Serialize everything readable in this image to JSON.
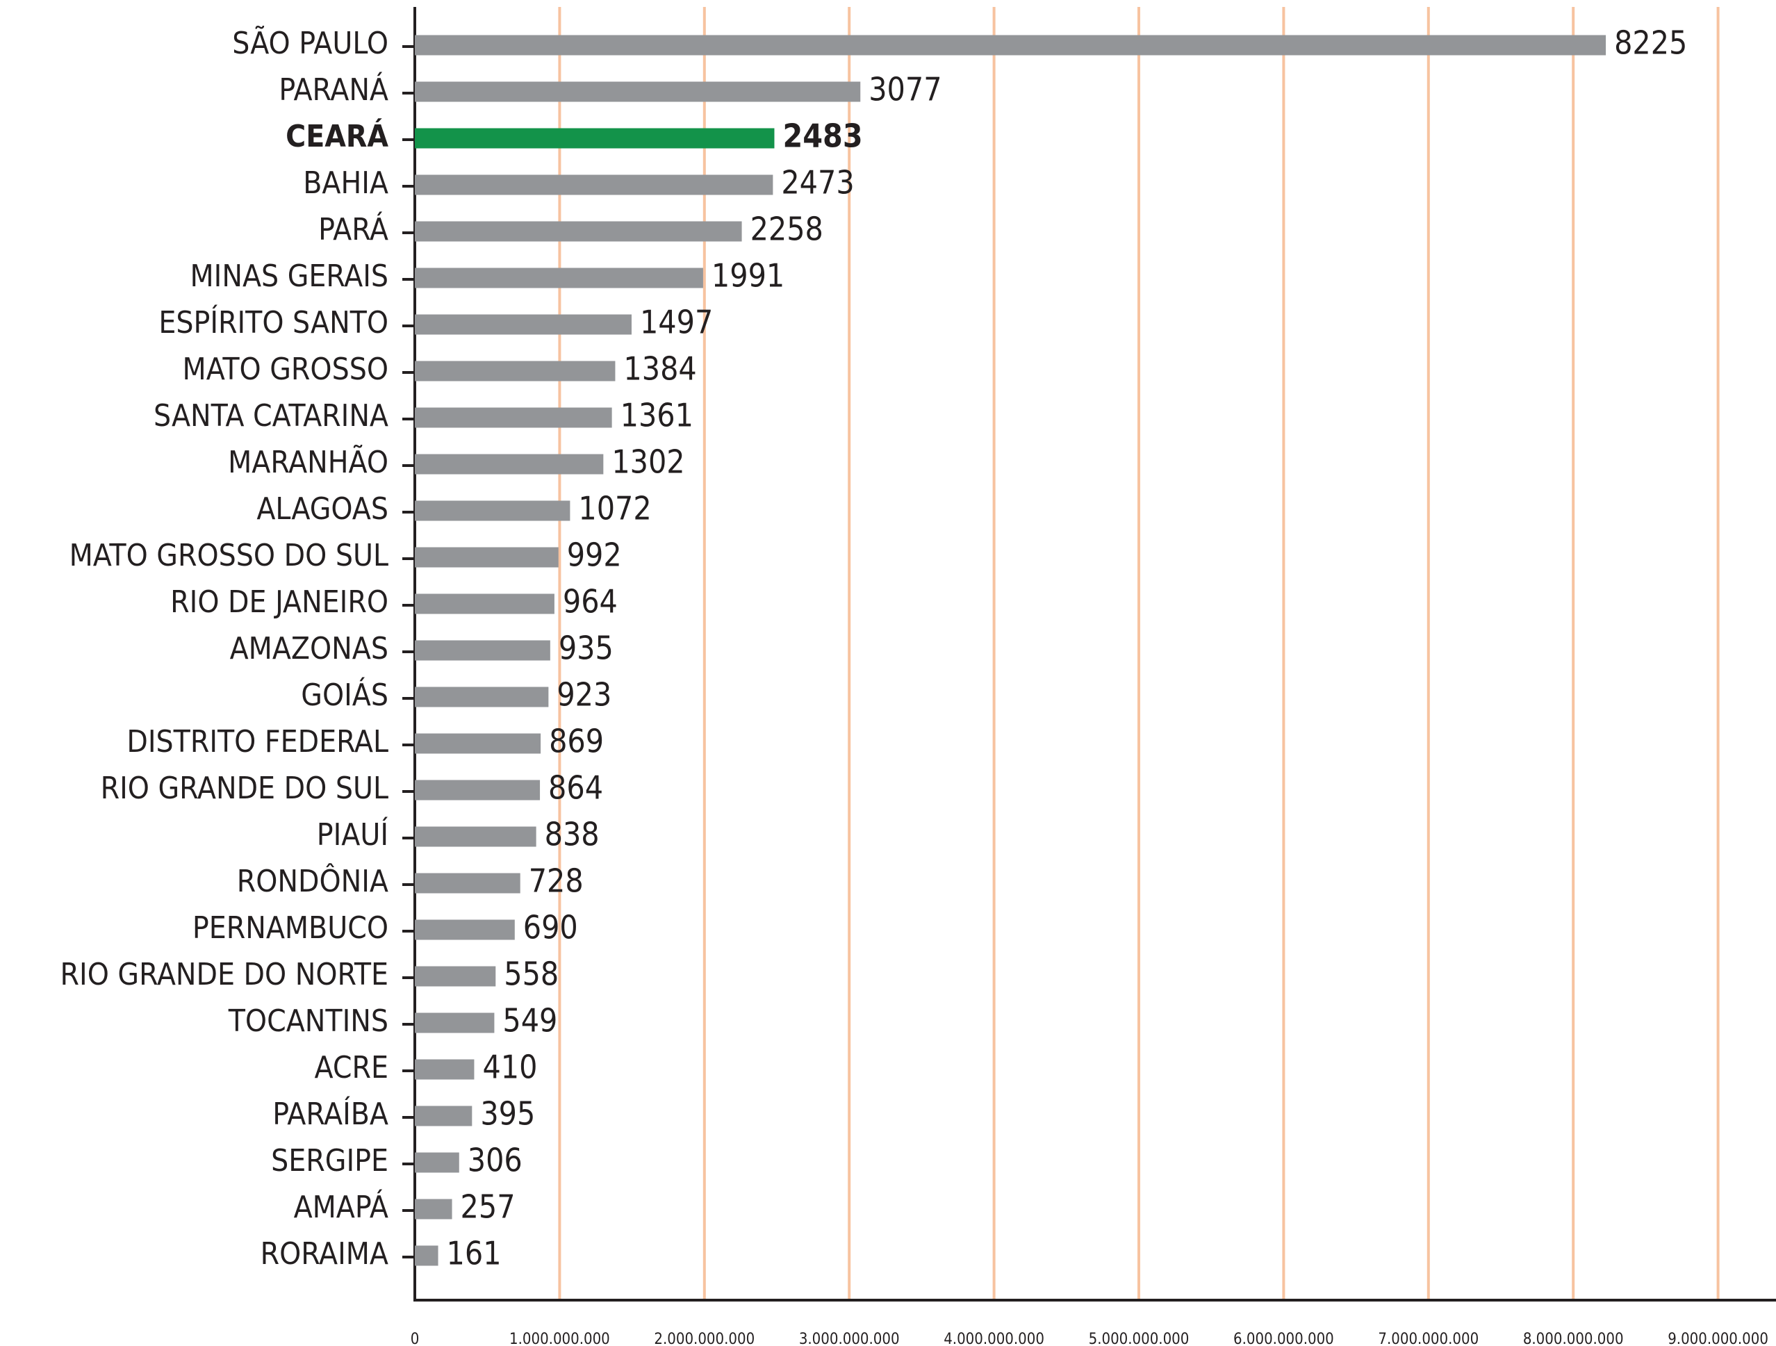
{
  "chart_data": {
    "type": "bar",
    "orientation": "horizontal",
    "categories": [
      "SÃO PAULO",
      "PARANÁ",
      "CEARÁ",
      "BAHIA",
      "PARÁ",
      "MINAS GERAIS",
      "ESPÍRITO SANTO",
      "MATO GROSSO",
      "SANTA CATARINA",
      "MARANHÃO",
      "ALAGOAS",
      "MATO GROSSO DO SUL",
      "RIO DE JANEIRO",
      "AMAZONAS",
      "GOIÁS",
      "DISTRITO FEDERAL",
      "RIO GRANDE DO SUL",
      "PIAUÍ",
      "RONDÔNIA",
      "PERNAMBUCO",
      "RIO GRANDE DO NORTE",
      "TOCANTINS",
      "ACRE",
      "PARAÍBA",
      "SERGIPE",
      "AMAPÁ",
      "RORAIMA"
    ],
    "values": [
      8225000000,
      3077000000,
      2483000000,
      2473000000,
      2258000000,
      1991000000,
      1497000000,
      1384000000,
      1361000000,
      1302000000,
      1072000000,
      992000000,
      964000000,
      935000000,
      923000000,
      869000000,
      864000000,
      838000000,
      728000000,
      690000000,
      558000000,
      549000000,
      410000000,
      395000000,
      306000000,
      257000000,
      161000000
    ],
    "value_labels": [
      "8225",
      "3077",
      "2483",
      "2473",
      "2258",
      "1991",
      "1497",
      "1384",
      "1361",
      "1302",
      "1072",
      "992",
      "964",
      "935",
      "923",
      "869",
      "864",
      "838",
      "728",
      "690",
      "558",
      "549",
      "410",
      "395",
      "306",
      "257",
      "161"
    ],
    "color": "#939598",
    "colors": [
      "#939598",
      "#939598",
      "#13934a",
      "#939598",
      "#939598",
      "#939598",
      "#939598",
      "#939598",
      "#939598",
      "#939598",
      "#939598",
      "#939598",
      "#939598",
      "#939598",
      "#939598",
      "#939598",
      "#939598",
      "#939598",
      "#939598",
      "#939598",
      "#939598",
      "#939598",
      "#939598",
      "#939598",
      "#939598",
      "#939598",
      "#939598"
    ],
    "xlim": [
      0,
      9000000000
    ],
    "xticks": [
      0,
      {
        "value": 1000000000,
        "label": "1.000.000.000"
      },
      {
        "value": 2000000000,
        "label": "2.000.000.000"
      },
      {
        "value": 3000000000,
        "label": "3.000.000.000"
      },
      {
        "value": 4000000000,
        "label": "4.000.000.000"
      },
      {
        "value": 5000000000,
        "label": "5.000.000.000"
      },
      {
        "value": 6000000000,
        "label": "6.000.000.000"
      },
      {
        "value": 7000000000,
        "label": "7.000.000.000"
      },
      {
        "value": 8000000000,
        "label": "8.000.000.000"
      },
      {
        "value": 9000000000,
        "label": "9.000.000.000"
      }
    ],
    "grid": true,
    "grid_color": "#f7c3a0"
  }
}
